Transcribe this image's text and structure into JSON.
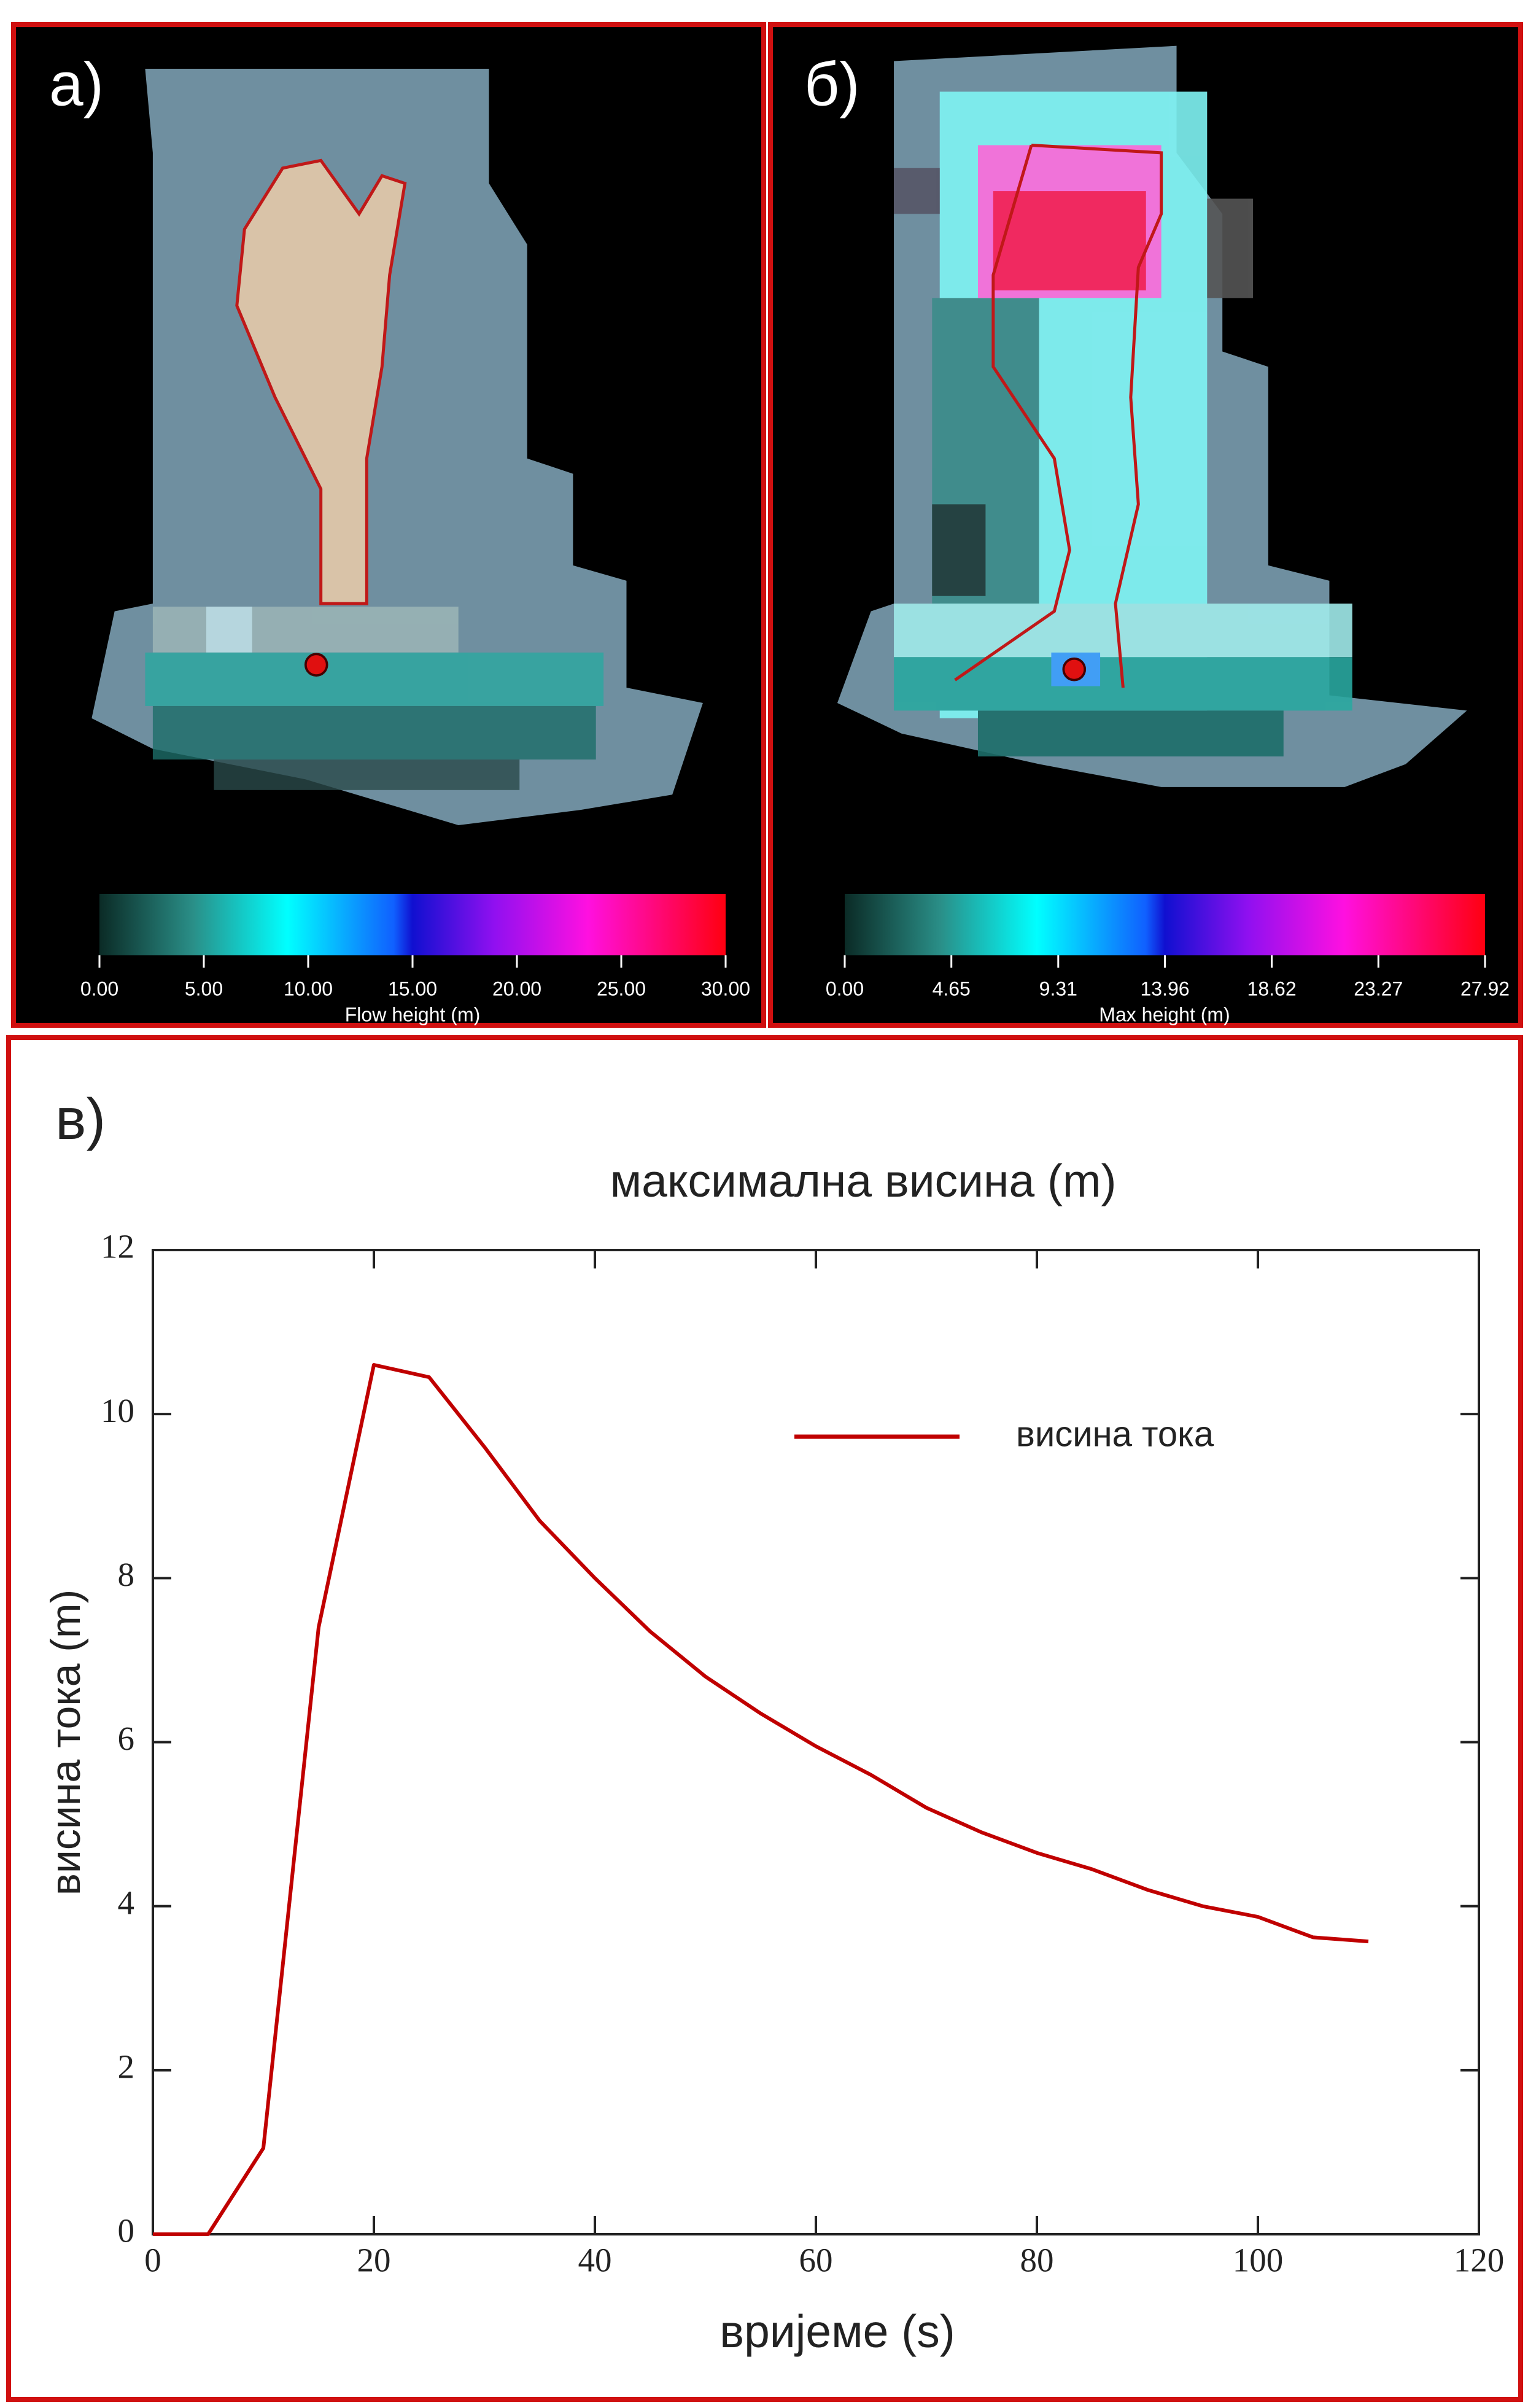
{
  "chart_data": [
    {
      "type": "colorbar",
      "panel_label": "a)",
      "label": "Flow height (m)",
      "xlim": [
        0,
        30
      ],
      "xticks": [
        {
          "value": 0,
          "label": "0.00"
        },
        {
          "value": 5,
          "label": "5.00"
        },
        {
          "value": 10,
          "label": "10.00"
        },
        {
          "value": 15,
          "label": "15.00"
        },
        {
          "value": 20,
          "label": "20.00"
        },
        {
          "value": 25,
          "label": "25.00"
        },
        {
          "value": 30,
          "label": "30.00"
        }
      ]
    },
    {
      "type": "colorbar",
      "panel_label": "б)",
      "label": "Max height (m)",
      "xlim": [
        0,
        27.92
      ],
      "xticks": [
        {
          "value": 0,
          "label": "0.00"
        },
        4.65,
        9.31,
        13.96,
        18.62,
        23.27,
        27.92
      ]
    },
    {
      "type": "line",
      "panel_label": "в)",
      "title": "максимална висина (m)",
      "x_label": "вријеме (s)",
      "y_label": "висина тока (m)",
      "x": [
        0,
        5,
        10,
        15,
        20,
        25,
        30,
        35,
        40,
        45,
        50,
        55,
        60,
        65,
        70,
        75,
        80,
        85,
        90,
        95,
        100,
        105,
        110
      ],
      "series": [
        {
          "name": "висина тока",
          "color": "#c00000",
          "values": [
            0,
            0,
            1.05,
            7.4,
            10.6,
            10.45,
            9.6,
            8.7,
            8.0,
            7.35,
            6.8,
            6.35,
            5.95,
            5.6,
            5.2,
            4.9,
            4.65,
            4.45,
            4.2,
            4.0,
            3.87,
            3.62,
            3.57
          ]
        }
      ],
      "xlim": [
        0,
        120
      ],
      "ylim": [
        0,
        12
      ],
      "xticks": [
        0,
        20,
        40,
        60,
        80,
        100,
        120
      ],
      "yticks": [
        0,
        2,
        4,
        6,
        8,
        10,
        12
      ],
      "legend": "upper right"
    }
  ]
}
